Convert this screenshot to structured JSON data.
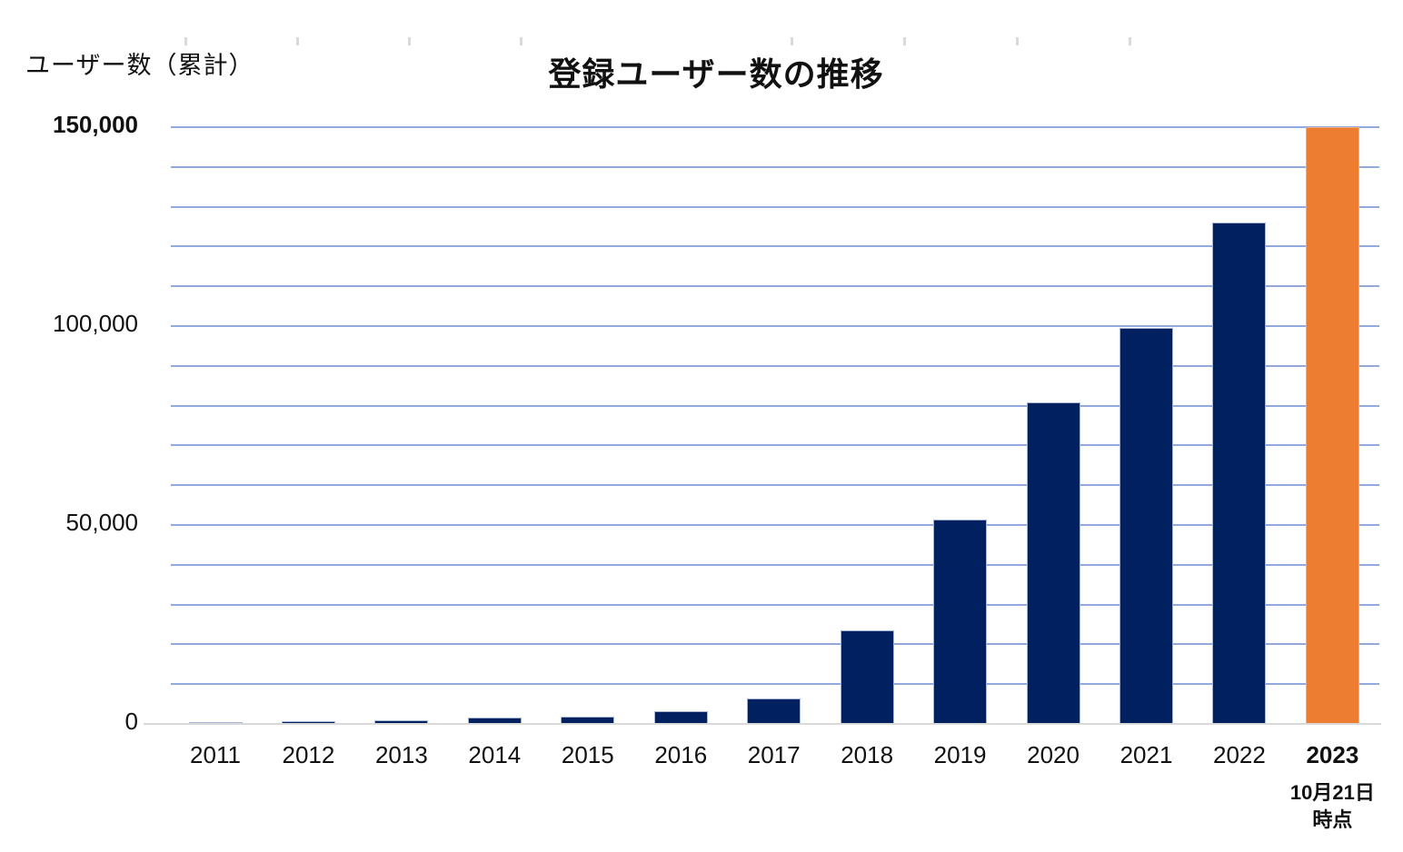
{
  "chart_data": {
    "type": "bar",
    "title": "登録ユーザー数の推移",
    "y_axis_label": "ユーザー数（累計）",
    "xlabel": "",
    "ylabel": "ユーザー数（累計）",
    "categories": [
      "2011",
      "2012",
      "2013",
      "2014",
      "2015",
      "2016",
      "2017",
      "2018",
      "2019",
      "2020",
      "2021",
      "2022",
      "2023"
    ],
    "values": [
      400,
      800,
      1000,
      1500,
      1900,
      3100,
      6400,
      23500,
      51400,
      80800,
      99600,
      126000,
      150000
    ],
    "ylim": [
      0,
      150000
    ],
    "gridline_interval": 10000,
    "grid": true,
    "legend": false,
    "yticks": [
      {
        "value": 150000,
        "label": "150,000",
        "bold": true
      },
      {
        "value": 100000,
        "label": "100,000",
        "bold": false
      },
      {
        "value": 50000,
        "label": "50,000",
        "bold": false
      },
      {
        "value": 0,
        "label": "0",
        "bold": false
      }
    ],
    "highlight_index": 12,
    "x_annotation": {
      "applies_to": "2023",
      "line1": "10月21日",
      "line2": "時点"
    },
    "colors": {
      "bar": "#002060",
      "highlight_bar": "#ED7D31",
      "gridline": "#7E9AD8",
      "baseline": "#D9D9D9",
      "text": "#111111"
    }
  }
}
